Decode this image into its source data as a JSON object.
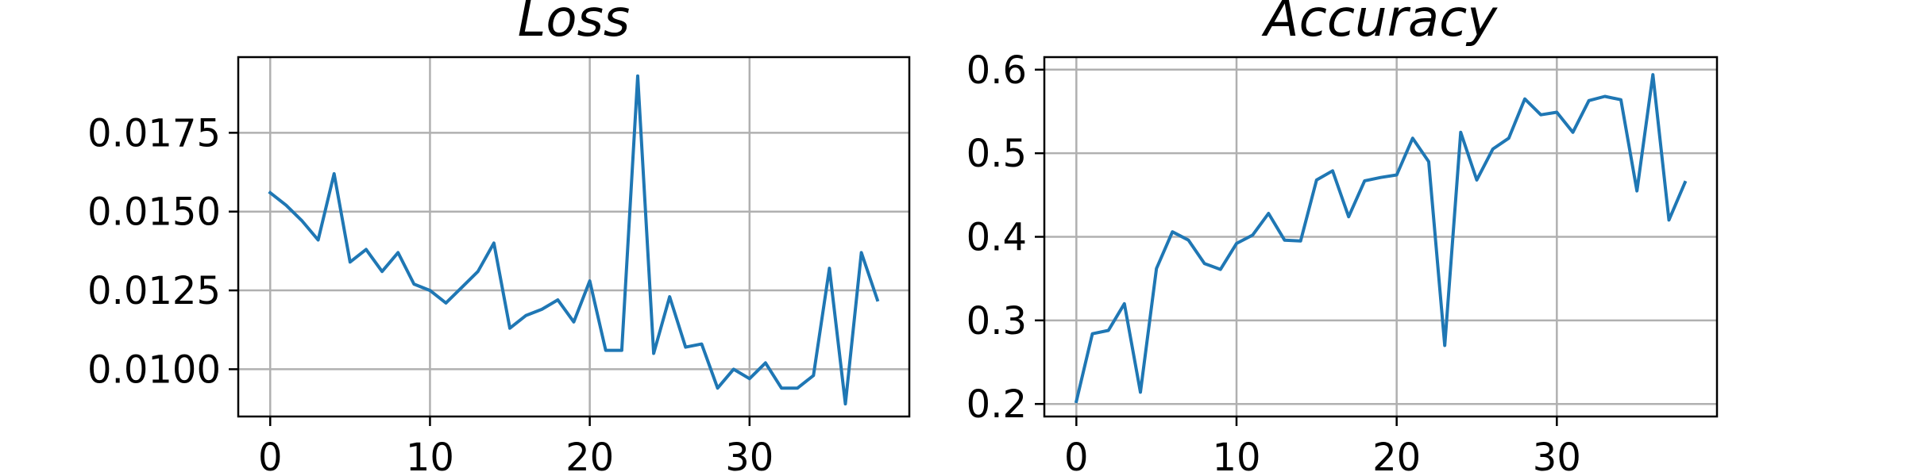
{
  "chart_data": [
    {
      "type": "line",
      "title": "Loss",
      "xlabel": "",
      "ylabel": "",
      "xlim": [
        -2,
        40
      ],
      "ylim": [
        0.0085,
        0.0199
      ],
      "grid": true,
      "xticks": [
        0,
        10,
        20,
        30
      ],
      "yticks": [
        0.01,
        0.0125,
        0.015,
        0.0175
      ],
      "xtick_labels": [
        "0",
        "10",
        "20",
        "30"
      ],
      "ytick_labels": [
        "0.0100",
        "0.0125",
        "0.0150",
        "0.0175"
      ],
      "series": [
        {
          "color": "#1f77b4",
          "x": [
            0,
            1,
            2,
            3,
            4,
            5,
            6,
            7,
            8,
            9,
            10,
            11,
            12,
            13,
            14,
            15,
            16,
            17,
            18,
            19,
            20,
            21,
            22,
            23,
            24,
            25,
            26,
            27,
            28,
            29,
            30,
            31,
            32,
            33,
            34,
            35,
            36,
            37,
            38
          ],
          "y": [
            0.0156,
            0.0152,
            0.0147,
            0.0141,
            0.0162,
            0.0134,
            0.0138,
            0.0131,
            0.0137,
            0.0127,
            0.0125,
            0.0121,
            0.0126,
            0.0131,
            0.014,
            0.0113,
            0.0117,
            0.0119,
            0.0122,
            0.0115,
            0.0128,
            0.0106,
            0.0106,
            0.0193,
            0.0105,
            0.0123,
            0.0107,
            0.0108,
            0.0094,
            0.01,
            0.0097,
            0.0102,
            0.0094,
            0.0094,
            0.0098,
            0.0132,
            0.0089,
            0.0137,
            0.0122
          ]
        }
      ]
    },
    {
      "type": "line",
      "title": "Accuracy",
      "xlabel": "",
      "ylabel": "",
      "xlim": [
        -2,
        40
      ],
      "ylim": [
        0.185,
        0.615
      ],
      "grid": true,
      "xticks": [
        0,
        10,
        20,
        30
      ],
      "yticks": [
        0.2,
        0.3,
        0.4,
        0.5,
        0.6
      ],
      "xtick_labels": [
        "0",
        "10",
        "20",
        "30"
      ],
      "ytick_labels": [
        "0.2",
        "0.3",
        "0.4",
        "0.5",
        "0.6"
      ],
      "series": [
        {
          "color": "#1f77b4",
          "x": [
            0,
            1,
            2,
            3,
            4,
            5,
            6,
            7,
            8,
            9,
            10,
            11,
            12,
            13,
            14,
            15,
            16,
            17,
            18,
            19,
            20,
            21,
            22,
            23,
            24,
            25,
            26,
            27,
            28,
            29,
            30,
            31,
            32,
            33,
            34,
            35,
            36,
            37,
            38
          ],
          "y": [
            0.203,
            0.284,
            0.288,
            0.32,
            0.214,
            0.362,
            0.406,
            0.396,
            0.368,
            0.361,
            0.392,
            0.402,
            0.428,
            0.396,
            0.395,
            0.468,
            0.479,
            0.424,
            0.467,
            0.471,
            0.474,
            0.518,
            0.49,
            0.27,
            0.525,
            0.468,
            0.505,
            0.518,
            0.565,
            0.546,
            0.549,
            0.525,
            0.563,
            0.568,
            0.564,
            0.455,
            0.594,
            0.42,
            0.465
          ]
        }
      ]
    }
  ]
}
